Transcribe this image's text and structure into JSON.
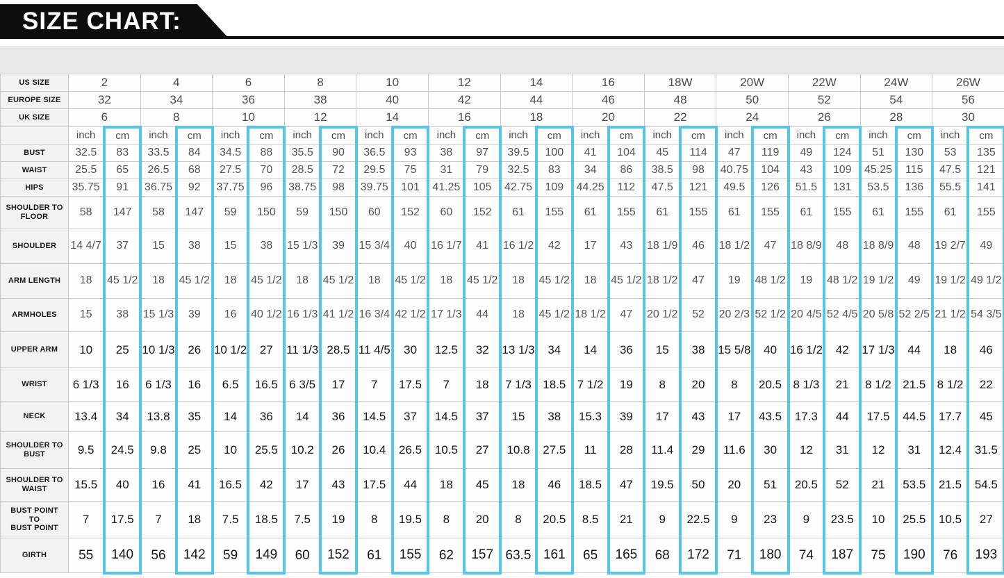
{
  "banner": {
    "title": "SIZE CHART:"
  },
  "size_chart": {
    "highlight_color": "#55c6e8",
    "unit_labels": [
      "inch",
      "cm"
    ],
    "size_rows": [
      {
        "label": "US SIZE",
        "values": [
          "2",
          "4",
          "6",
          "8",
          "10",
          "12",
          "14",
          "16",
          "18W",
          "20W",
          "22W",
          "24W",
          "26W"
        ]
      },
      {
        "label": "EUROPE SIZE",
        "values": [
          "32",
          "34",
          "36",
          "38",
          "40",
          "42",
          "44",
          "46",
          "48",
          "50",
          "52",
          "54",
          "56"
        ]
      },
      {
        "label": "UK SIZE",
        "values": [
          "6",
          "8",
          "10",
          "12",
          "14",
          "16",
          "18",
          "20",
          "22",
          "24",
          "26",
          "28",
          "30"
        ]
      }
    ],
    "measurement_rows": [
      {
        "label": "BUST",
        "cells": [
          "32.5",
          "83",
          "33.5",
          "84",
          "34.5",
          "88",
          "35.5",
          "90",
          "36.5",
          "93",
          "38",
          "97",
          "39.5",
          "100",
          "41",
          "104",
          "45",
          "114",
          "47",
          "119",
          "49",
          "124",
          "51",
          "130",
          "53",
          "135"
        ]
      },
      {
        "label": "WAIST",
        "cells": [
          "25.5",
          "65",
          "26.5",
          "68",
          "27.5",
          "70",
          "28.5",
          "72",
          "29.5",
          "75",
          "31",
          "79",
          "32.5",
          "83",
          "34",
          "86",
          "38.5",
          "98",
          "40.75",
          "104",
          "43",
          "109",
          "45.25",
          "115",
          "47.5",
          "121"
        ]
      },
      {
        "label": "HIPS",
        "cells": [
          "35.75",
          "91",
          "36.75",
          "92",
          "37.75",
          "96",
          "38.75",
          "98",
          "39.75",
          "101",
          "41.25",
          "105",
          "42.75",
          "109",
          "44.25",
          "112",
          "47.5",
          "121",
          "49.5",
          "126",
          "51.5",
          "131",
          "53.5",
          "136",
          "55.5",
          "141"
        ]
      },
      {
        "label": "SHOULDER TO\nFLOOR",
        "cells": [
          "58",
          "147",
          "58",
          "147",
          "59",
          "150",
          "59",
          "150",
          "60",
          "152",
          "60",
          "152",
          "61",
          "155",
          "61",
          "155",
          "61",
          "155",
          "61",
          "155",
          "61",
          "155",
          "61",
          "155",
          "61",
          "155"
        ]
      },
      {
        "label": "SHOULDER",
        "cells": [
          "14 4/7",
          "37",
          "15",
          "38",
          "15",
          "38",
          "15 1/3",
          "39",
          "15 3/4",
          "40",
          "16 1/7",
          "41",
          "16 1/2",
          "42",
          "17",
          "43",
          "18 1/9",
          "46",
          "18 1/2",
          "47",
          "18 8/9",
          "48",
          "18 8/9",
          "48",
          "19 2/7",
          "49"
        ]
      },
      {
        "label": "ARM LENGTH",
        "cells": [
          "18",
          "45 1/2",
          "18",
          "45 1/2",
          "18",
          "45 1/2",
          "18",
          "45 1/2",
          "18",
          "45 1/2",
          "18",
          "45 1/2",
          "18",
          "45 1/2",
          "18",
          "45 1/2",
          "18 1/2",
          "47",
          "19",
          "48 1/2",
          "19",
          "48 1/2",
          "19 1/2",
          "49",
          "19 1/2",
          "49 1/2"
        ]
      },
      {
        "label": "ARMHOLES",
        "cells": [
          "15",
          "38",
          "15 1/3",
          "39",
          "16",
          "40 1/2",
          "16 1/3",
          "41 1/2",
          "16 3/4",
          "42 1/2",
          "17 1/3",
          "44",
          "18",
          "45 1/2",
          "18 1/2",
          "47",
          "20 1/2",
          "52",
          "20 2/3",
          "52 1/2",
          "20 4/5",
          "52 4/5",
          "20 5/8",
          "52 2/5",
          "21 1/2",
          "54 3/5"
        ]
      },
      {
        "label": "UPPER ARM",
        "cells": [
          "10",
          "25",
          "10 1/3",
          "26",
          "10 1/2",
          "27",
          "11 1/3",
          "28.5",
          "11 4/5",
          "30",
          "12.5",
          "32",
          "13 1/3",
          "34",
          "14",
          "36",
          "15",
          "38",
          "15 5/8",
          "40",
          "16 1/2",
          "42",
          "17 1/3",
          "44",
          "18",
          "46"
        ]
      },
      {
        "label": "WRIST",
        "cells": [
          "6 1/3",
          "16",
          "6 1/3",
          "16",
          "6.5",
          "16.5",
          "6 3/5",
          "17",
          "7",
          "17.5",
          "7",
          "18",
          "7 1/3",
          "18.5",
          "7 1/2",
          "19",
          "8",
          "20",
          "8",
          "20.5",
          "8 1/3",
          "21",
          "8 1/2",
          "21.5",
          "8 1/2",
          "22"
        ]
      },
      {
        "label": "NECK",
        "cells": [
          "13.4",
          "34",
          "13.8",
          "35",
          "14",
          "36",
          "14",
          "36",
          "14.5",
          "37",
          "14.5",
          "37",
          "15",
          "38",
          "15.3",
          "39",
          "17",
          "43",
          "17",
          "43.5",
          "17.3",
          "44",
          "17.5",
          "44.5",
          "17.7",
          "45"
        ]
      },
      {
        "label": "SHOULDER TO\nBUST",
        "cells": [
          "9.5",
          "24.5",
          "9.8",
          "25",
          "10",
          "25.5",
          "10.2",
          "26",
          "10.4",
          "26.5",
          "10.5",
          "27",
          "10.8",
          "27.5",
          "11",
          "28",
          "11.4",
          "29",
          "11.6",
          "30",
          "12",
          "31",
          "12",
          "31",
          "12.4",
          "31.5"
        ]
      },
      {
        "label": "SHOULDER TO\nWAIST",
        "cells": [
          "15.5",
          "40",
          "16",
          "41",
          "16.5",
          "42",
          "17",
          "43",
          "17.5",
          "44",
          "18",
          "45",
          "18",
          "46",
          "18.5",
          "47",
          "19.5",
          "50",
          "20",
          "51",
          "20.5",
          "52",
          "21",
          "53.5",
          "21.5",
          "54.5"
        ]
      },
      {
        "label": "BUST POINT\nTO\nBUST POINT",
        "cells": [
          "7",
          "17.5",
          "7",
          "18",
          "7.5",
          "18.5",
          "7.5",
          "19",
          "8",
          "19.5",
          "8",
          "20",
          "8",
          "20.5",
          "8.5",
          "21",
          "9",
          "22.5",
          "9",
          "23",
          "9",
          "23.5",
          "10",
          "25.5",
          "10.5",
          "27"
        ]
      },
      {
        "label": "GIRTH",
        "cells": [
          "55",
          "140",
          "56",
          "142",
          "59",
          "149",
          "60",
          "152",
          "61",
          "155",
          "62",
          "157",
          "63.5",
          "161",
          "65",
          "165",
          "68",
          "172",
          "71",
          "180",
          "74",
          "187",
          "75",
          "190",
          "76",
          "193"
        ]
      }
    ]
  }
}
